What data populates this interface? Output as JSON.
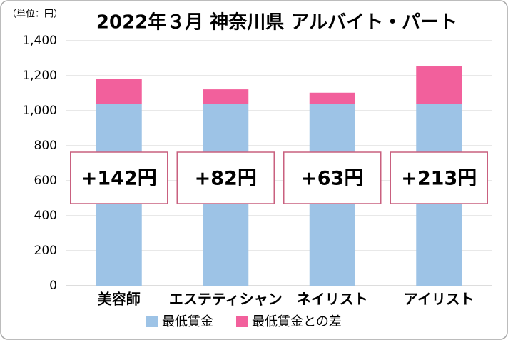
{
  "chart_data": {
    "type": "stacked_bar",
    "title": "2022年３月 神奈川県 アルバイト・パート",
    "unit_label": "（単位：円）",
    "categories": [
      "美容師",
      "エステティシャン",
      "ネイリスト",
      "アイリスト"
    ],
    "series": [
      {
        "name": "最低賃金",
        "color": "#9dc3e6",
        "values": [
          1040,
          1040,
          1040,
          1040
        ]
      },
      {
        "name": "最低賃金との差",
        "color": "#f2609c",
        "values": [
          142,
          82,
          63,
          213
        ],
        "value_labels": [
          "+142円",
          "+82円",
          "+63円",
          "+213円"
        ]
      }
    ],
    "ylim": [
      0,
      1400
    ],
    "yticks": [
      0,
      200,
      400,
      600,
      800,
      {
        "value": 1000,
        "label": "1,000"
      },
      {
        "value": 1200,
        "label": "1,200"
      },
      {
        "value": 1400,
        "label": "1,400"
      }
    ],
    "grid": true,
    "legend": "bottom"
  }
}
